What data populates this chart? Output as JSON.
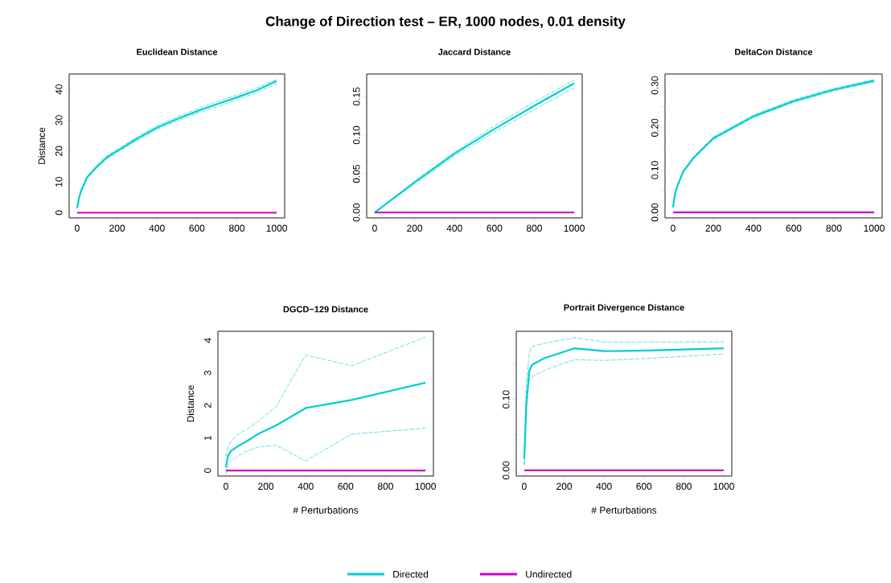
{
  "chart_data": [
    {
      "type": "line",
      "title": "Euclidean Distance",
      "ylabel": "Distance",
      "annotations": [
        "Change of Direction test – ER, 1000 nodes, 0.01 density"
      ],
      "xlim": [
        -40,
        1040
      ],
      "ylim": [
        -1.7,
        45
      ],
      "xticks": [
        0,
        200,
        400,
        600,
        800,
        1000
      ],
      "yticks": [
        0,
        10,
        20,
        30,
        40
      ],
      "series": [
        {
          "color": "#00ced1",
          "x": [
            0,
            10,
            20,
            50,
            100,
            150,
            200,
            300,
            400,
            500,
            600,
            700,
            800,
            900,
            1000
          ],
          "values": [
            1.5,
            5,
            7.1,
            11.5,
            15,
            18,
            20,
            24,
            27.6,
            30.4,
            32.9,
            35.2,
            37.4,
            39.7,
            42.7
          ]
        },
        {
          "color": "#00ced1",
          "line_style": "dashed",
          "x": [
            0,
            10,
            20,
            50,
            100,
            150,
            200,
            300,
            400,
            500,
            600,
            700,
            800,
            900,
            1000
          ],
          "values": [
            1.3,
            4.8,
            6.8,
            11.2,
            14.6,
            17.5,
            19.5,
            23.4,
            27,
            29.7,
            32.2,
            34.4,
            36.6,
            38.9,
            41.9
          ]
        },
        {
          "color": "#00ced1",
          "line_style": "dashed",
          "x": [
            0,
            10,
            20,
            50,
            100,
            150,
            200,
            300,
            400,
            500,
            600,
            700,
            800,
            900,
            1000
          ],
          "values": [
            1.7,
            5.2,
            7.4,
            11.8,
            15.4,
            18.5,
            20.5,
            24.6,
            28.2,
            31.1,
            33.6,
            36,
            38.2,
            40.5,
            43.3
          ]
        },
        {
          "color": "#cd00cd",
          "x": [
            0,
            1000
          ],
          "values": [
            0,
            0
          ]
        }
      ]
    },
    {
      "type": "line",
      "title": "Jaccard Distance",
      "xlim": [
        -40,
        1040
      ],
      "ylim": [
        -0.007,
        0.179
      ],
      "xticks": [
        0,
        200,
        400,
        600,
        800,
        1000
      ],
      "yticks": [
        {
          "value": 0,
          "label": "0.00"
        },
        0.05,
        {
          "value": 0.1,
          "label": "0.10"
        },
        0.15
      ],
      "series": [
        {
          "color": "#00ced1",
          "x": [
            0,
            200,
            400,
            600,
            800,
            1000
          ],
          "values": [
            0,
            0.039,
            0.076,
            0.108,
            0.138,
            0.167
          ]
        },
        {
          "color": "#00ced1",
          "line_style": "dashed",
          "x": [
            0,
            200,
            400,
            600,
            800,
            1000
          ],
          "values": [
            0,
            0.037,
            0.073,
            0.104,
            0.133,
            0.161
          ]
        },
        {
          "color": "#00ced1",
          "line_style": "dashed",
          "x": [
            0,
            200,
            400,
            600,
            800,
            1000
          ],
          "values": [
            0,
            0.04,
            0.078,
            0.112,
            0.143,
            0.171
          ]
        },
        {
          "color": "#cd00cd",
          "x": [
            0,
            1000
          ],
          "values": [
            0,
            0
          ]
        }
      ]
    },
    {
      "type": "line",
      "title": "DeltaCon Distance",
      "xlim": [
        -40,
        1040
      ],
      "ylim": [
        -0.013,
        0.327
      ],
      "xticks": [
        0,
        200,
        400,
        600,
        800,
        1000
      ],
      "yticks": [
        {
          "value": 0,
          "label": "0.00"
        },
        {
          "value": 0.05,
          "label": null
        },
        {
          "value": 0.1,
          "label": "0.10"
        },
        {
          "value": 0.15,
          "label": null
        },
        {
          "value": 0.2,
          "label": "0.20"
        },
        {
          "value": 0.25,
          "label": null
        },
        {
          "value": 0.3,
          "label": "0.30"
        }
      ],
      "series": [
        {
          "color": "#00ced1",
          "x": [
            0,
            10,
            20,
            50,
            100,
            200,
            400,
            600,
            800,
            1000
          ],
          "values": [
            0.012,
            0.045,
            0.061,
            0.096,
            0.128,
            0.175,
            0.227,
            0.263,
            0.29,
            0.311
          ]
        },
        {
          "color": "#00ced1",
          "line_style": "dashed",
          "x": [
            0,
            10,
            20,
            50,
            100,
            200,
            400,
            600,
            800,
            1000
          ],
          "values": [
            0.011,
            0.043,
            0.059,
            0.094,
            0.126,
            0.172,
            0.224,
            0.26,
            0.287,
            0.308
          ]
        },
        {
          "color": "#00ced1",
          "line_style": "dashed",
          "x": [
            0,
            10,
            20,
            50,
            100,
            200,
            400,
            600,
            800,
            1000
          ],
          "values": [
            0.013,
            0.047,
            0.063,
            0.098,
            0.13,
            0.178,
            0.23,
            0.266,
            0.293,
            0.314
          ]
        },
        {
          "color": "#cd00cd",
          "x": [
            0,
            1000
          ],
          "values": [
            0,
            0
          ]
        }
      ]
    },
    {
      "type": "line",
      "title": "DGCD−129 Distance",
      "xlabel": "# Perturbations",
      "ylabel": "Distance",
      "xlim": [
        -40,
        1040
      ],
      "ylim": [
        -0.17,
        4.28
      ],
      "xticks": [
        0,
        200,
        400,
        600,
        800,
        1000
      ],
      "yticks": [
        0,
        1,
        2,
        3,
        4
      ],
      "series": [
        {
          "color": "#00ced1",
          "x": [
            0,
            10,
            25,
            60,
            100,
            160,
            250,
            400,
            630,
            1000
          ],
          "values": [
            0.1,
            0.45,
            0.6,
            0.75,
            0.88,
            1.12,
            1.38,
            1.92,
            2.17,
            2.7
          ]
        },
        {
          "color": "#00ced1",
          "line_style": "dashed",
          "x": [
            0,
            10,
            25,
            60,
            100,
            160,
            250,
            400,
            630,
            1000
          ],
          "values": [
            -0.1,
            0.15,
            0.3,
            0.45,
            0.58,
            0.72,
            0.78,
            0.3,
            1.12,
            1.3
          ]
        },
        {
          "color": "#00ced1",
          "line_style": "dashed",
          "x": [
            0,
            10,
            25,
            60,
            100,
            160,
            250,
            400,
            630,
            1000
          ],
          "values": [
            0.45,
            0.7,
            0.9,
            1.1,
            1.25,
            1.5,
            1.95,
            3.55,
            3.22,
            4.1
          ]
        },
        {
          "color": "#cd00cd",
          "x": [
            0,
            1000
          ],
          "values": [
            0,
            0
          ]
        }
      ]
    },
    {
      "type": "line",
      "title": "Portrait Divergence Distance",
      "xlabel": "# Perturbations",
      "legend": "bottom",
      "xlim": [
        -40,
        1040
      ],
      "ylim": [
        -0.008,
        0.196
      ],
      "xticks": [
        0,
        200,
        400,
        600,
        800,
        1000
      ],
      "yticks": [
        {
          "value": 0,
          "label": "0.00"
        },
        {
          "value": 0.05,
          "label": null
        },
        {
          "value": 0.1,
          "label": "0.10"
        },
        {
          "value": 0.15,
          "label": null
        }
      ],
      "series": [
        {
          "name": "Directed",
          "color": "#00ced1",
          "x": [
            0,
            10,
            25,
            40,
            100,
            250,
            400,
            630,
            1000
          ],
          "values": [
            0.016,
            0.09,
            0.14,
            0.149,
            0.158,
            0.172,
            0.168,
            0.169,
            0.172
          ]
        },
        {
          "color": "#00ced1",
          "line_style": "dashed",
          "x": [
            0,
            10,
            25,
            40,
            100,
            250,
            400,
            630,
            1000
          ],
          "values": [
            0.008,
            0.11,
            0.128,
            0.132,
            0.141,
            0.156,
            0.155,
            0.158,
            0.164
          ]
        },
        {
          "color": "#00ced1",
          "line_style": "dashed",
          "x": [
            0,
            10,
            25,
            40,
            100,
            250,
            400,
            630,
            1000
          ],
          "values": [
            0.008,
            0.12,
            0.165,
            0.175,
            0.179,
            0.187,
            0.181,
            0.181,
            0.181
          ]
        },
        {
          "name": "Undirected",
          "color": "#cd00cd",
          "x": [
            0,
            1000
          ],
          "values": [
            0,
            0
          ]
        }
      ]
    }
  ]
}
